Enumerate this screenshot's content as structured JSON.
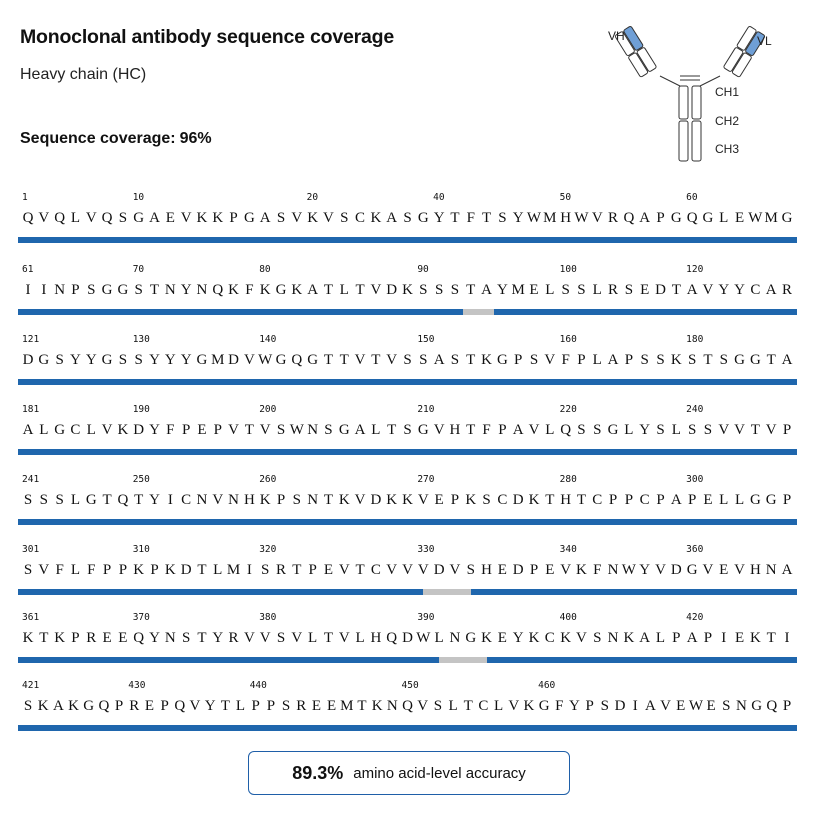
{
  "title": "Monoclonal antibody sequence coverage",
  "subtitle": "Heavy chain (HC)",
  "coverage": {
    "label": "Sequence coverage:",
    "value": "96%"
  },
  "colors": {
    "covered": "#1f66ad",
    "uncovered": "#c4c4c4",
    "domain_highlight": "#6f9fd6",
    "box_border": "#1f5fa8"
  },
  "antibody_diagram": {
    "labels": [
      "VH",
      "VL",
      "CH1",
      "CH2",
      "CH3"
    ]
  },
  "rows": [
    {
      "sequence": "QVQLVQSGAEVKKPGASVKVSCKASGYTFTSYWMHWVRQAPGQGLEWMG",
      "numbers": [
        {
          "pos": 0,
          "text": "1"
        },
        {
          "pos": 7,
          "text": "10"
        },
        {
          "pos": 18,
          "text": "20"
        },
        {
          "pos": 26,
          "text": "40"
        },
        {
          "pos": 34,
          "text": "50"
        },
        {
          "pos": 42,
          "text": "60"
        }
      ],
      "uncovered": []
    },
    {
      "sequence": "IINPSGGSTNYNQKFKGKATLTVDKSSSTAYMELSSLRSEDTAVYYCAR",
      "numbers": [
        {
          "pos": 0,
          "text": "61"
        },
        {
          "pos": 7,
          "text": "70"
        },
        {
          "pos": 15,
          "text": "80"
        },
        {
          "pos": 25,
          "text": "90"
        },
        {
          "pos": 34,
          "text": "100"
        },
        {
          "pos": 42,
          "text": "120"
        }
      ],
      "uncovered": [
        [
          27.5,
          29.5
        ]
      ]
    },
    {
      "sequence": "DGSYYGSSYYYGMDVWGQGTTVTVSSASTKGPSVFPLAPSSKSTSGGTA",
      "numbers": [
        {
          "pos": 0,
          "text": "121"
        },
        {
          "pos": 7,
          "text": "130"
        },
        {
          "pos": 15,
          "text": "140"
        },
        {
          "pos": 25,
          "text": "150"
        },
        {
          "pos": 34,
          "text": "160"
        },
        {
          "pos": 42,
          "text": "180"
        }
      ],
      "uncovered": []
    },
    {
      "sequence": "ALGCLVKDYFPEPVTVSWNSGALTSGVHTFPAVLQSSGLYSLSSVVTVP",
      "numbers": [
        {
          "pos": 0,
          "text": "181"
        },
        {
          "pos": 7,
          "text": "190"
        },
        {
          "pos": 15,
          "text": "200"
        },
        {
          "pos": 25,
          "text": "210"
        },
        {
          "pos": 34,
          "text": "220"
        },
        {
          "pos": 42,
          "text": "240"
        }
      ],
      "uncovered": []
    },
    {
      "sequence": "SSSLGTQTYICNVNHKPSNTKVDKKVEPKSCDKTHTCPPCPAPELLGGP",
      "numbers": [
        {
          "pos": 0,
          "text": "241"
        },
        {
          "pos": 7,
          "text": "250"
        },
        {
          "pos": 15,
          "text": "260"
        },
        {
          "pos": 25,
          "text": "270"
        },
        {
          "pos": 34,
          "text": "280"
        },
        {
          "pos": 42,
          "text": "300"
        }
      ],
      "uncovered": []
    },
    {
      "sequence": "SVFLFPPKPKDTLMISRTPEVTCVVVDVSHEDPEVKFNWYVDGVEVHNA",
      "numbers": [
        {
          "pos": 0,
          "text": "301"
        },
        {
          "pos": 7,
          "text": "310"
        },
        {
          "pos": 15,
          "text": "320"
        },
        {
          "pos": 25,
          "text": "330"
        },
        {
          "pos": 34,
          "text": "340"
        },
        {
          "pos": 42,
          "text": "360"
        }
      ],
      "uncovered": [
        [
          25,
          28
        ]
      ]
    },
    {
      "sequence": "KTKPREEQYNSTYRVVSVLTVLHQDWLNGKEYKCKVSNKALPAPIEKTI",
      "numbers": [
        {
          "pos": 0,
          "text": "361"
        },
        {
          "pos": 7,
          "text": "370"
        },
        {
          "pos": 15,
          "text": "380"
        },
        {
          "pos": 25,
          "text": "390"
        },
        {
          "pos": 34,
          "text": "400"
        },
        {
          "pos": 42,
          "text": "420"
        }
      ],
      "uncovered": [
        [
          26,
          29
        ]
      ]
    },
    {
      "sequence": "SKAKGQPREPQVYTLPPSREEMTKNQVSLTCLVKGFYPSDIAVEWESNGQP",
      "numbers": [
        {
          "pos": 0,
          "text": "421"
        },
        {
          "pos": 7,
          "text": "430"
        },
        {
          "pos": 15,
          "text": "440"
        },
        {
          "pos": 25,
          "text": "450"
        },
        {
          "pos": 34,
          "text": "460"
        }
      ],
      "uncovered": []
    }
  ],
  "accuracy": {
    "value": "89.3%",
    "label": "amino acid-level accuracy"
  }
}
